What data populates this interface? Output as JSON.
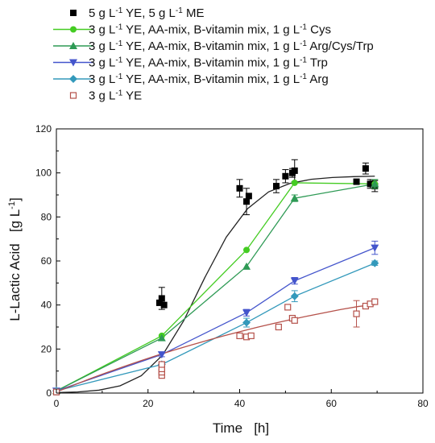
{
  "chart_data": {
    "type": "scatter",
    "xlabel": "Time   [h]",
    "ylabel": "L-Lactic Acid   [g L-1]",
    "xlim": [
      0,
      80
    ],
    "ylim": [
      0,
      120
    ],
    "xticks": [
      0,
      20,
      40,
      60,
      80
    ],
    "yticks": [
      0,
      20,
      40,
      60,
      80,
      100,
      120
    ],
    "grid": false,
    "legend_position": "top-left",
    "series": [
      {
        "name": "5 g L-1 YE, 5 g L-1 ME",
        "legend_parts": [
          "5 g L",
          "-1",
          " YE, 5 g L",
          "-1",
          " ME"
        ],
        "color": "#000000",
        "marker": "square-filled",
        "fit": "sigmoid",
        "fit_color": "#222222",
        "x": [
          0,
          22.5,
          23,
          23.5,
          40,
          41.5,
          42,
          48,
          50,
          51.5,
          52,
          65.5,
          67.5,
          68.5,
          69.5
        ],
        "y": [
          0.5,
          41,
          43,
          40,
          93,
          87,
          89.5,
          94,
          98.5,
          100,
          101,
          96,
          102,
          95,
          94
        ],
        "err": [
          0,
          0,
          5,
          0,
          4,
          6,
          0,
          3,
          3,
          2,
          5,
          0,
          2.5,
          2,
          2.5
        ],
        "fit_y": [
          0.2,
          0.5,
          1.3,
          3.3,
          7.9,
          17.2,
          32.9,
          52.6,
          70.8,
          83.7,
          91.4,
          95.2,
          97.1,
          97.9,
          98.3,
          98.5
        ]
      },
      {
        "name": "3 g L-1 YE, AA-mix, B-vitamin mix, 1 g L-1 Cys",
        "legend_parts": [
          "3 g L",
          "-1",
          " YE, AA-mix, B-vitamin mix, 1 g L",
          "-1",
          " Cys"
        ],
        "color": "#44cc22",
        "marker": "circle-filled",
        "x": [
          0,
          23,
          41.5,
          52,
          69.5
        ],
        "y": [
          1,
          26,
          65,
          95.5,
          95
        ],
        "err": [
          0,
          0,
          0,
          0,
          2
        ]
      },
      {
        "name": "3 g L-1 YE, AA-mix, B-vitamin mix, 1 g L-1 Arg/Cys/Trp",
        "legend_parts": [
          "3 g L",
          "-1",
          " YE, AA-mix, B-vitamin mix, 1 g L",
          "-1",
          " Arg/Cys/Trp"
        ],
        "color": "#2e9a55",
        "marker": "triangle-up-filled",
        "x": [
          0,
          23,
          41.5,
          52,
          69.5
        ],
        "y": [
          1,
          25,
          57.5,
          88.5,
          95
        ],
        "err": [
          0,
          0,
          0,
          1.5,
          2
        ]
      },
      {
        "name": "3 g L-1 YE, AA-mix, B-vitamin mix, 1 g L-1 Trp",
        "legend_parts": [
          "3 g L",
          "-1",
          " YE, AA-mix, B-vitamin mix, 1 g L",
          "-1",
          " Trp"
        ],
        "color": "#4455cc",
        "marker": "triangle-down-filled",
        "x": [
          0,
          23,
          41.5,
          52,
          69.5
        ],
        "y": [
          1,
          17.5,
          36.5,
          51,
          66
        ],
        "err": [
          0,
          1,
          1.5,
          1.5,
          3
        ]
      },
      {
        "name": "3 g L-1 YE, AA-mix, B-vitamin mix, 1 g L-1 Arg",
        "legend_parts": [
          "3 g L",
          "-1",
          " YE, AA-mix, B-vitamin mix, 1 g L",
          "-1",
          " Arg"
        ],
        "color": "#3399bb",
        "marker": "diamond-filled",
        "x": [
          0,
          23,
          41.5,
          52,
          69.5
        ],
        "y": [
          1,
          13,
          32,
          44,
          59
        ],
        "err": [
          0,
          0,
          2,
          2.5,
          1
        ]
      },
      {
        "name": "3 g L-1 YE",
        "legend_parts": [
          "3 g L",
          "-1",
          " YE"
        ],
        "color": "#b5514a",
        "marker": "square-open",
        "x": [
          0,
          23,
          23,
          23,
          23,
          40,
          41.5,
          42.5,
          48.5,
          50.5,
          51.5,
          52,
          65.5,
          67.5,
          68.5,
          69.5
        ],
        "y": [
          0.5,
          8,
          9.5,
          11,
          13,
          26,
          25.5,
          26,
          30,
          39,
          34,
          33,
          36,
          39.5,
          40.5,
          41.5
        ],
        "err": [
          0,
          0,
          0,
          0,
          0,
          0,
          1,
          0,
          0,
          0,
          1,
          0,
          6,
          0,
          1,
          0
        ],
        "fit_y": [
          0.5,
          3.5,
          6.5,
          9.3,
          12,
          14.6,
          17.1,
          19.5,
          21.7,
          23.9,
          26,
          28,
          29.9,
          31.7,
          33.4,
          35,
          36.5,
          38,
          39.3,
          40.2
        ]
      }
    ]
  }
}
